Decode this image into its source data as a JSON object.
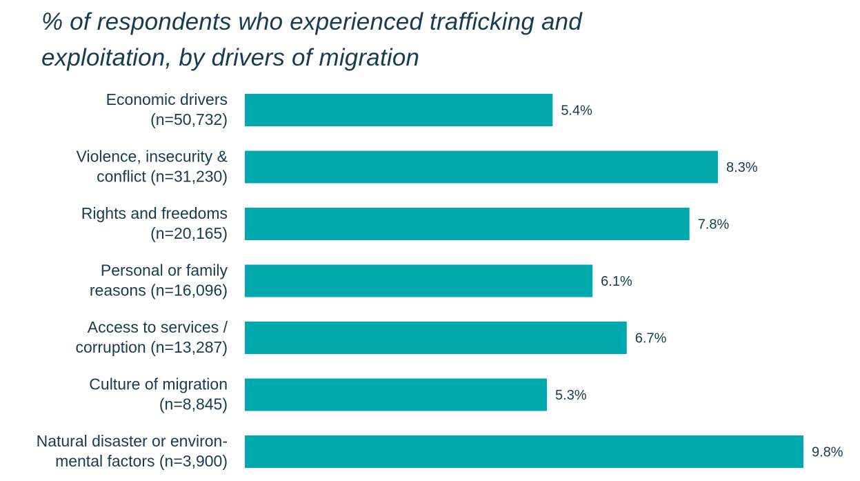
{
  "title": {
    "line1": "% of respondents who experienced trafficking and",
    "line2": "exploitation, by drivers of migration"
  },
  "colors": {
    "bar": "#00a9ac",
    "text": "#173b50"
  },
  "chart_data": {
    "type": "bar",
    "orientation": "horizontal",
    "title": "% of respondents who experienced trafficking and exploitation, by drivers of migration",
    "categories": [
      [
        "Economic drivers",
        "(n=50,732)"
      ],
      [
        "Violence, insecurity &",
        "conflict (n=31,230)"
      ],
      [
        "Rights and freedoms",
        "(n=20,165)"
      ],
      [
        "Personal or family",
        "reasons (n=16,096)"
      ],
      [
        "Access to  services /",
        "corruption (n=13,287)"
      ],
      [
        "Culture of migration",
        "(n=8,845)"
      ],
      [
        "Natural disaster or environ-",
        "mental factors (n=3,900)"
      ]
    ],
    "values": [
      5.4,
      8.3,
      7.8,
      6.1,
      6.7,
      5.3,
      9.8
    ],
    "value_labels": [
      "5.4%",
      "8.3%",
      "7.8%",
      "6.1%",
      "6.7%",
      "5.3%",
      "9.8%"
    ],
    "xlim": [
      0,
      9.8
    ],
    "grid": false,
    "legend": "none"
  }
}
